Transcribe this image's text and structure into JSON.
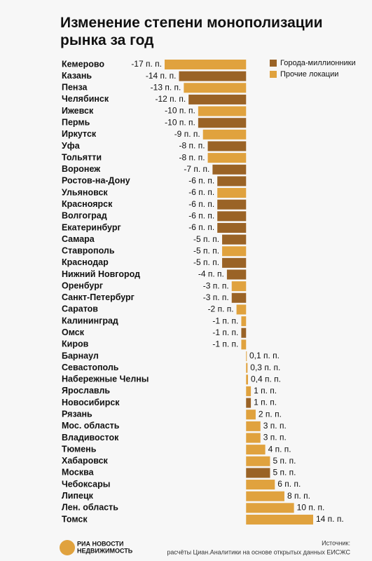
{
  "chart_data": {
    "type": "bar",
    "orientation": "horizontal",
    "title": "Изменение степени монополизации рынка за год",
    "categories": [
      "Кемерово",
      "Казань",
      "Пенза",
      "Челябинск",
      "Ижевск",
      "Пермь",
      "Иркутск",
      "Уфа",
      "Тольятти",
      "Воронеж",
      "Ростов-на-Дону",
      "Ульяновск",
      "Красноярск",
      "Волгоград",
      "Екатеринбург",
      "Самара",
      "Ставрополь",
      "Краснодар",
      "Нижний Новгород",
      "Оренбург",
      "Санкт-Петербург",
      "Саратов",
      "Калининград",
      "Омск",
      "Киров",
      "Барнаул",
      "Севастополь",
      "Набережные Челны",
      "Ярославль",
      "Новосибирск",
      "Рязань",
      "Мос. область",
      "Владивосток",
      "Тюмень",
      "Хабаровск",
      "Москва",
      "Чебоксары",
      "Липецк",
      "Лен. область",
      "Томск"
    ],
    "series": [
      {
        "name": "Города-миллионники",
        "color": "#9a6326",
        "values": [
          null,
          -14,
          null,
          -12,
          null,
          -10,
          null,
          -8,
          null,
          -7,
          -6,
          null,
          -6,
          -6,
          -6,
          -5,
          null,
          -5,
          -4,
          null,
          -3,
          null,
          null,
          -1,
          null,
          null,
          null,
          null,
          null,
          1,
          null,
          null,
          null,
          null,
          null,
          5,
          null,
          null,
          null,
          null
        ],
        "value_labels": [
          null,
          "-14 п. п.",
          null,
          "-12 п. п.",
          null,
          "-10 п. п.",
          null,
          "-8 п. п.",
          null,
          "-7 п. п.",
          "-6 п. п.",
          null,
          "-6 п. п.",
          "-6 п. п.",
          "-6 п. п.",
          "-5 п. п.",
          null,
          "-5 п. п.",
          "-4 п. п.",
          null,
          "-3 п. п.",
          null,
          null,
          "-1 п. п.",
          null,
          null,
          null,
          null,
          null,
          "1 п. п.",
          null,
          null,
          null,
          null,
          null,
          "5 п. п.",
          null,
          null,
          null,
          null
        ]
      },
      {
        "name": "Прочие локации",
        "color": "#e0a23e",
        "values": [
          -17,
          null,
          -13,
          null,
          -10,
          null,
          -9,
          null,
          -8,
          null,
          null,
          -6,
          null,
          null,
          null,
          null,
          -5,
          null,
          null,
          -3,
          null,
          -2,
          -1,
          null,
          -1,
          0.1,
          0.3,
          0.4,
          1,
          null,
          2,
          3,
          3,
          4,
          5,
          null,
          6,
          8,
          10,
          14
        ],
        "value_labels": [
          "-17 п. п.",
          null,
          "-13 п. п.",
          null,
          "-10 п. п.",
          null,
          "-9 п. п.",
          null,
          "-8 п. п.",
          null,
          null,
          "-6 п. п.",
          null,
          null,
          null,
          null,
          "-5 п. п.",
          null,
          null,
          "-3 п. п.",
          null,
          "-2 п. п.",
          "-1 п. п.",
          null,
          "-1 п. п.",
          "0,1 п. п.",
          "0,3 п. п.",
          "0,4 п. п.",
          "1 п. п.",
          null,
          "2 п. п.",
          "3 п. п.",
          "3 п. п.",
          "4 п. п.",
          "5 п. п.",
          null,
          "6 п. п.",
          "8 п. п.",
          "10 п. п.",
          "14 п. п."
        ]
      }
    ],
    "xlim": [
      -17,
      14
    ],
    "legend": "top-right"
  },
  "footer": {
    "logo_line1": "РИА НОВОСТИ",
    "logo_line2": "НЕДВИЖИМОСТЬ",
    "source_label": "Источник:",
    "source": "расчёты Циан.Аналитики на основе открытых данных ЕИСЖС"
  }
}
